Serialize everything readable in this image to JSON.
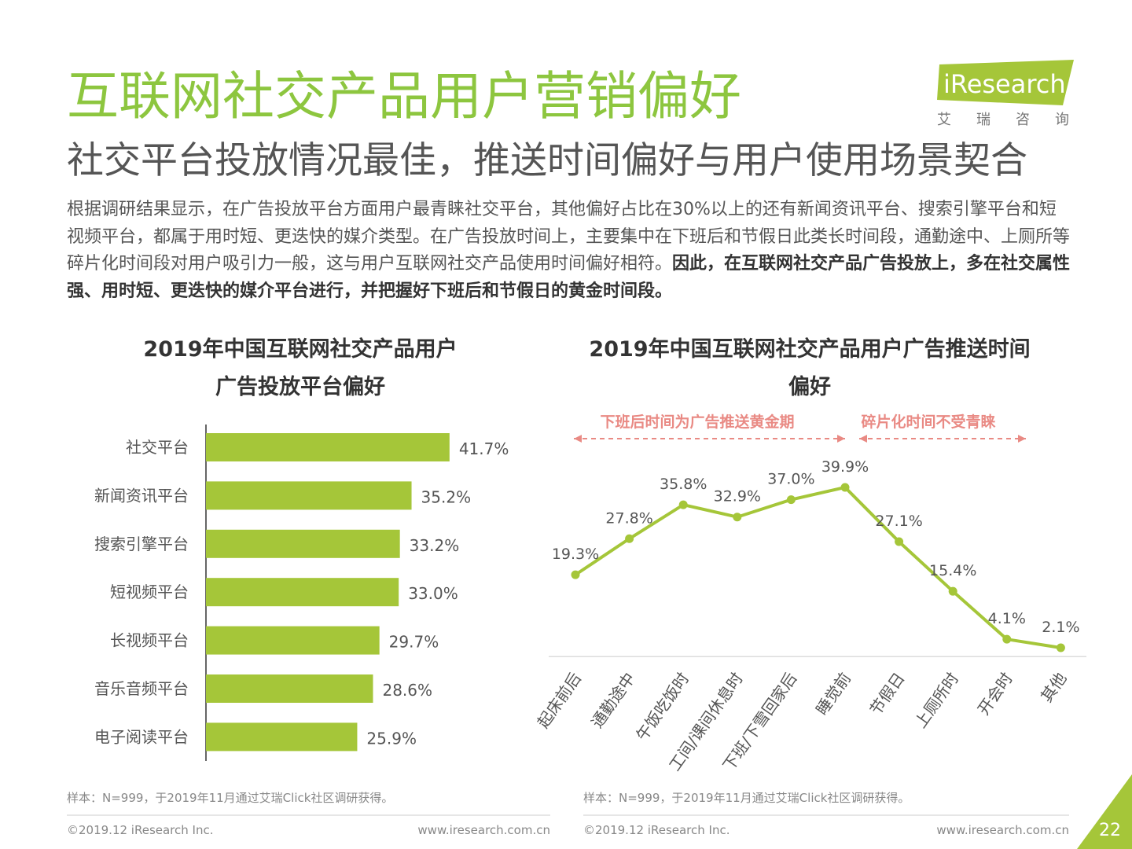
{
  "header": {
    "title": "互联网社交产品用户营销偏好",
    "subtitle": "社交平台投放情况最佳，推送时间偏好与用户使用场景契合",
    "logo": "iResearch",
    "logo_sub": "艾瑞咨询"
  },
  "body": {
    "text": "根据调研结果显示，在广告投放平台方面用户最青睐社交平台，其他偏好占比在30%以上的还有新闻资讯平台、搜索引擎平台和短视频平台，都属于用时短、更迭快的媒介类型。在广告投放时间上，主要集中在下班后和节假日此类长时间段，通勤途中、上厕所等碎片化时间段对用户吸引力一般，这与用户互联网社交产品使用时间偏好相符。",
    "emphasis": "因此，在互联网社交产品广告投放上，多在社交属性强、用时短、更迭快的媒介平台进行，并把握好下班后和节假日的黄金时间段。"
  },
  "chart_data": [
    {
      "type": "hbar",
      "title": [
        "2019年中国互联网社交产品用户",
        "广告投放平台偏好"
      ],
      "categories": [
        "社交平台",
        "新闻资讯平台",
        "搜索引擎平台",
        "短视频平台",
        "长视频平台",
        "音乐音频平台",
        "电子阅读平台"
      ],
      "values": [
        41.7,
        35.2,
        33.2,
        33.0,
        29.7,
        28.6,
        25.9
      ],
      "value_labels": [
        "41.7%",
        "35.2%",
        "33.2%",
        "33.0%",
        "29.7%",
        "28.6%",
        "25.9%"
      ],
      "color": "#a5c639"
    },
    {
      "type": "line",
      "title": [
        "2019年中国互联网社交产品用户广告推送时间",
        "偏好"
      ],
      "categories": [
        "起床前后",
        "通勤途中",
        "午饭吃饭时",
        "工间/课间休息时",
        "下班/下雪回家后",
        "睡觉前",
        "节假日",
        "上厕所时",
        "开会时",
        "其他"
      ],
      "values": [
        19.3,
        27.8,
        35.8,
        32.9,
        37.0,
        39.9,
        27.1,
        15.4,
        4.1,
        2.1
      ],
      "value_labels": [
        "19.3%",
        "27.8%",
        "35.8%",
        "32.9%",
        "37.0%",
        "39.9%",
        "27.1%",
        "15.4%",
        "4.1%",
        "2.1%"
      ],
      "annotations": [
        "下班后时间为广告推送黄金期",
        "碎片化时间不受青睐"
      ],
      "color": "#a5c639"
    }
  ],
  "footnotes": [
    {
      "source": "样本：N=999，于2019年11月通过艾瑞Click社区调研获得。",
      "copyright": "©2019.12 iResearch Inc.",
      "website": "www.iresearch.com.cn"
    },
    {
      "source": "样本：N=999，于2019年11月通过艾瑞Click社区调研获得。",
      "copyright": "©2019.12 iResearch Inc.",
      "website": "www.iresearch.com.cn"
    }
  ],
  "page_number": "22"
}
